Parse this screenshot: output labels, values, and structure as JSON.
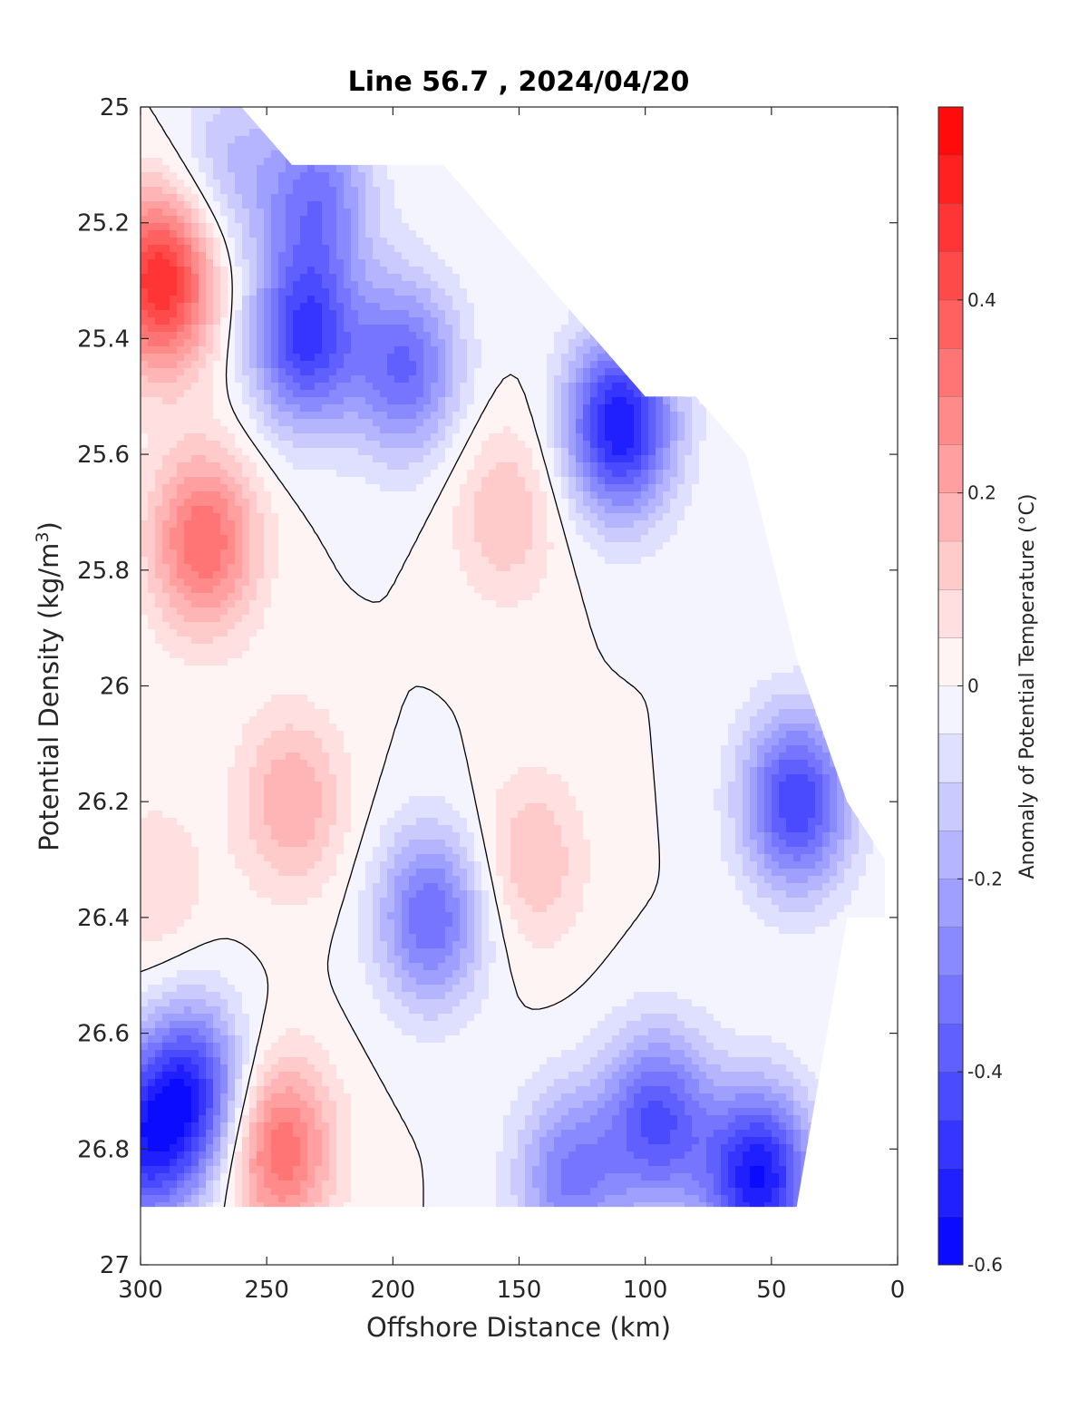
{
  "chart_data": {
    "type": "heatmap",
    "subtype": "filled-contour",
    "title": "Line 56.7 , 2024/04/20",
    "xlabel": "Offshore Distance (km)",
    "ylabel_main": "Potential Density (kg/m",
    "ylabel_sup": "3",
    "ylabel_close": ")",
    "colorbar_label": "Anomaly of Potential Temperature (°C)",
    "xlim": [
      300,
      0
    ],
    "ylim": [
      27,
      25
    ],
    "x_reversed": true,
    "y_reversed": true,
    "x_ticks": [
      300,
      250,
      200,
      150,
      100,
      50,
      0
    ],
    "x_tick_labels": [
      "300",
      "250",
      "200",
      "150",
      "100",
      "50",
      "0"
    ],
    "y_ticks": [
      25,
      25.2,
      25.4,
      25.6,
      25.8,
      26,
      26.2,
      26.4,
      26.6,
      26.8,
      27
    ],
    "y_tick_labels": [
      "25",
      "25.2",
      "25.4",
      "25.6",
      "25.8",
      "26",
      "26.2",
      "26.4",
      "26.6",
      "26.8",
      "27"
    ],
    "colorbar_range": [
      -0.6,
      0.6
    ],
    "colorbar_levels": 24,
    "colorbar_ticks": [
      -0.6,
      -0.4,
      -0.2,
      0,
      0.2,
      0.4
    ],
    "colorbar_tick_labels": [
      "-0.6",
      "-0.4",
      "-0.2",
      "0",
      "0.2",
      "0.4"
    ],
    "colormap": {
      "negative": "#0000ff",
      "zero": "#ffffff",
      "positive": "#ff0000"
    },
    "zero_contour_color": "#000000",
    "data_coverage": {
      "x": [
        300,
        280,
        260,
        240,
        220,
        200,
        180,
        160,
        140,
        120,
        100,
        80,
        60,
        40,
        20,
        5
      ],
      "density_min": [
        25.0,
        25.0,
        25.0,
        25.1,
        25.1,
        25.1,
        25.1,
        25.2,
        25.3,
        25.4,
        25.5,
        25.5,
        25.6,
        25.95,
        26.2,
        26.3
      ],
      "density_max": [
        26.9,
        26.9,
        26.9,
        26.9,
        26.9,
        26.9,
        26.9,
        26.9,
        26.9,
        26.9,
        26.9,
        26.9,
        26.9,
        26.9,
        26.4,
        26.4
      ]
    },
    "features": [
      {
        "x": 275,
        "density": 25.75,
        "anomaly": 0.35
      },
      {
        "x": 292,
        "density": 25.3,
        "anomaly": 0.5
      },
      {
        "x": 240,
        "density": 26.2,
        "anomaly": 0.2
      },
      {
        "x": 245,
        "density": 26.8,
        "anomaly": 0.35
      },
      {
        "x": 295,
        "density": 26.35,
        "anomaly": 0.1
      },
      {
        "x": 235,
        "density": 25.4,
        "anomaly": -0.45
      },
      {
        "x": 195,
        "density": 25.45,
        "anomaly": -0.35
      },
      {
        "x": 155,
        "density": 25.7,
        "anomaly": 0.15
      },
      {
        "x": 145,
        "density": 26.3,
        "anomaly": 0.15
      },
      {
        "x": 185,
        "density": 26.4,
        "anomaly": -0.35
      },
      {
        "x": 110,
        "density": 25.55,
        "anomaly": -0.55
      },
      {
        "x": 70,
        "density": 25.9,
        "anomaly": 0.0
      },
      {
        "x": 40,
        "density": 26.2,
        "anomaly": -0.45
      },
      {
        "x": 280,
        "density": 26.7,
        "anomaly": -0.45
      },
      {
        "x": 300,
        "density": 26.8,
        "anomaly": -0.4
      },
      {
        "x": 55,
        "density": 26.85,
        "anomaly": -0.55
      },
      {
        "x": 95,
        "density": 26.75,
        "anomaly": -0.4
      },
      {
        "x": 130,
        "density": 26.85,
        "anomaly": -0.3
      },
      {
        "x": 230,
        "density": 25.15,
        "anomaly": -0.3
      },
      {
        "x": 265,
        "density": 25.1,
        "anomaly": -0.15
      }
    ]
  }
}
